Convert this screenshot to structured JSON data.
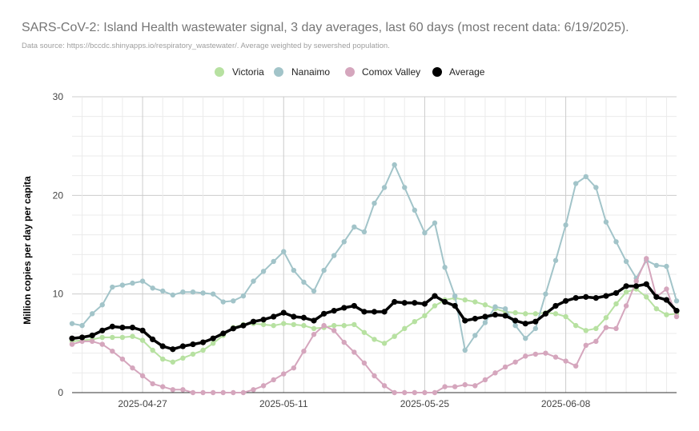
{
  "title": "SARS-CoV-2: Island Health wastewater signal, 3 day averages, last 60 days (most recent data: 6/19/2025).",
  "subtitle": "Data source: https://bccdc.shinyapps.io/respiratory_wastewater/. Average weighted by sewershed population.",
  "chart_data": {
    "type": "line",
    "ylabel": "Million copies per day per capita",
    "xlabel": "",
    "ylim": [
      0,
      30
    ],
    "y_ticks": [
      "0",
      "10",
      "20",
      "30"
    ],
    "x_tick_labels": [
      "2025-04-27",
      "2025-05-11",
      "2025-05-25",
      "2025-06-08"
    ],
    "x_tick_index": [
      7,
      21,
      35,
      49
    ],
    "x_start": "2025-04-20",
    "x_end": "2025-06-19",
    "legend_position": "top",
    "grid": true,
    "series": [
      {
        "name": "Victoria",
        "color": "#b7e1a1",
        "values": [
          5.2,
          5.3,
          5.4,
          5.6,
          5.6,
          5.6,
          5.7,
          5.3,
          4.3,
          3.4,
          3.1,
          3.5,
          3.9,
          4.3,
          5.0,
          5.8,
          6.6,
          6.9,
          7.0,
          6.9,
          6.8,
          7.0,
          6.9,
          6.8,
          6.5,
          6.6,
          6.8,
          6.8,
          6.9,
          6.1,
          5.4,
          5.0,
          5.7,
          6.5,
          7.2,
          7.8,
          8.8,
          9.4,
          9.6,
          9.4,
          9.2,
          8.9,
          8.5,
          8.2,
          8.1,
          8.0,
          8.0,
          8.1,
          8.0,
          7.7,
          6.8,
          6.3,
          6.5,
          7.6,
          9.0,
          10.2,
          10.5,
          9.7,
          8.5,
          7.9,
          8.0
        ]
      },
      {
        "name": "Nanaimo",
        "color": "#a2c4c9",
        "values": [
          7.0,
          6.8,
          8.0,
          8.9,
          10.7,
          10.9,
          11.1,
          11.3,
          10.6,
          10.3,
          9.9,
          10.2,
          10.2,
          10.1,
          10.0,
          9.2,
          9.3,
          9.8,
          11.3,
          12.3,
          13.3,
          14.3,
          12.4,
          11.2,
          10.3,
          12.4,
          13.9,
          15.3,
          16.8,
          16.3,
          19.2,
          20.8,
          23.1,
          20.8,
          18.5,
          16.2,
          17.2,
          12.7,
          9.8,
          4.3,
          5.8,
          7.1,
          8.7,
          8.5,
          6.8,
          5.5,
          6.5,
          10.0,
          13.4,
          17.0,
          21.2,
          21.9,
          20.8,
          17.3,
          15.3,
          13.3,
          11.6,
          13.4,
          12.9,
          12.8,
          9.3
        ]
      },
      {
        "name": "Comox Valley",
        "color": "#d5a6bd",
        "values": [
          4.9,
          5.2,
          5.2,
          4.9,
          4.2,
          3.4,
          2.5,
          1.7,
          0.9,
          0.6,
          0.3,
          0.3,
          0.0,
          0.0,
          0.0,
          0.0,
          0.0,
          0.0,
          0.3,
          0.7,
          1.3,
          1.9,
          2.5,
          4.2,
          5.9,
          6.8,
          6.3,
          5.1,
          4.1,
          3.0,
          1.7,
          0.7,
          0.0,
          0.0,
          0.0,
          0.0,
          0.0,
          0.6,
          0.6,
          0.8,
          0.7,
          1.3,
          2.0,
          2.6,
          3.1,
          3.7,
          3.9,
          4.0,
          3.6,
          3.2,
          2.7,
          4.8,
          5.2,
          6.6,
          6.5,
          8.8,
          11.3,
          13.6,
          9.7,
          10.5,
          7.7
        ]
      },
      {
        "name": "Average",
        "color": "#000000",
        "values": [
          5.5,
          5.6,
          5.8,
          6.3,
          6.7,
          6.6,
          6.6,
          6.3,
          5.4,
          4.7,
          4.4,
          4.7,
          4.9,
          5.1,
          5.5,
          6.0,
          6.5,
          6.8,
          7.2,
          7.4,
          7.7,
          8.1,
          7.7,
          7.6,
          7.3,
          8.0,
          8.3,
          8.6,
          8.8,
          8.2,
          8.2,
          8.2,
          9.2,
          9.1,
          9.1,
          9.0,
          9.8,
          9.2,
          8.8,
          7.3,
          7.5,
          7.7,
          7.9,
          7.8,
          7.3,
          7.0,
          7.2,
          8.0,
          8.8,
          9.3,
          9.6,
          9.7,
          9.6,
          9.8,
          10.1,
          10.8,
          10.8,
          11.0,
          9.7,
          9.4,
          8.3
        ]
      }
    ]
  }
}
